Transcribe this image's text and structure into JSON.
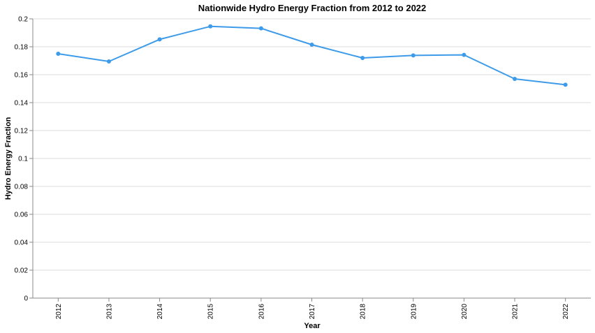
{
  "chart_data": {
    "type": "line",
    "title": "Nationwide Hydro Energy Fraction from 2012 to 2022",
    "xlabel": "Year",
    "ylabel": "Hydro Energy Fraction",
    "categories": [
      "2012",
      "2013",
      "2014",
      "2015",
      "2016",
      "2017",
      "2018",
      "2019",
      "2020",
      "2021",
      "2022"
    ],
    "series": [
      {
        "values": [
          0.175,
          0.1695,
          0.1853,
          0.1946,
          0.1932,
          0.1815,
          0.172,
          0.1738,
          0.1742,
          0.157,
          0.1528
        ]
      }
    ],
    "ylim": [
      0,
      0.2
    ],
    "yticks": [
      "0",
      "0.02",
      "0.04",
      "0.06",
      "0.08",
      "0.1",
      "0.12",
      "0.14",
      "0.16",
      "0.18",
      "0.2"
    ],
    "grid": true,
    "colors": {
      "line": "#3d9be9"
    }
  }
}
